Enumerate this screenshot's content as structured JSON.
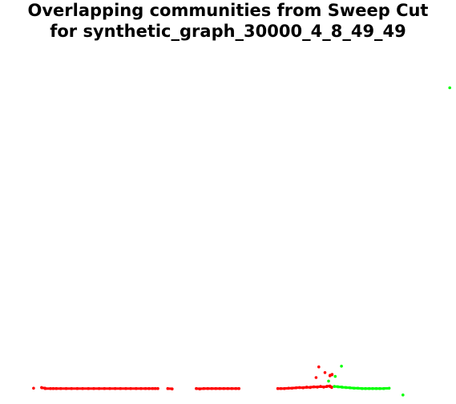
{
  "chart_data": {
    "type": "scatter",
    "title_lines": [
      "Overlapping communities from Sweep Cut",
      "for synthetic_graph_30000_4_8_49_49"
    ],
    "xlabel": "",
    "ylabel": "",
    "axes_visible": false,
    "grid": false,
    "xlim": [
      0,
      100
    ],
    "ylim": [
      0,
      100
    ],
    "colors": {
      "community_a": "#ff0000",
      "community_b": "#00ff00"
    },
    "series": [
      {
        "color_key": "community_a",
        "points": [
          [
            6.1,
            3.1
          ],
          [
            7.9,
            3.3
          ],
          [
            8.7,
            3.0
          ],
          [
            9.9,
            3.0
          ],
          [
            10.5,
            3.0
          ],
          [
            11.2,
            3.0
          ],
          [
            12.2,
            3.0
          ],
          [
            13.4,
            3.0
          ],
          [
            14.6,
            3.0
          ],
          [
            15.9,
            3.0
          ],
          [
            17.1,
            3.0
          ],
          [
            18.4,
            3.0
          ],
          [
            19.6,
            3.0
          ],
          [
            20.8,
            3.0
          ],
          [
            22.0,
            3.0
          ],
          [
            23.2,
            3.0
          ],
          [
            24.4,
            3.0
          ],
          [
            25.6,
            3.0
          ],
          [
            26.8,
            3.0
          ],
          [
            27.9,
            3.0
          ],
          [
            29.1,
            3.0
          ],
          [
            30.2,
            3.0
          ],
          [
            31.2,
            3.0
          ],
          [
            32.0,
            3.0
          ],
          [
            32.8,
            3.0
          ],
          [
            33.4,
            3.0
          ],
          [
            34.0,
            3.0
          ],
          [
            36.2,
            3.0
          ],
          [
            37.2,
            2.9
          ],
          [
            42.6,
            3.0
          ],
          [
            43.4,
            2.9
          ],
          [
            44.3,
            3.0
          ],
          [
            45.2,
            3.0
          ],
          [
            46.1,
            3.0
          ],
          [
            47.0,
            3.0
          ],
          [
            47.9,
            3.0
          ],
          [
            48.8,
            3.0
          ],
          [
            49.7,
            3.0
          ],
          [
            50.6,
            3.0
          ],
          [
            51.5,
            3.0
          ],
          [
            52.2,
            3.0
          ],
          [
            60.9,
            3.0
          ],
          [
            61.6,
            3.0
          ],
          [
            62.4,
            3.0
          ],
          [
            63.3,
            3.1
          ],
          [
            64.1,
            3.1
          ],
          [
            65.0,
            3.2
          ],
          [
            65.8,
            3.3
          ],
          [
            66.6,
            3.2
          ],
          [
            67.4,
            3.4
          ],
          [
            68.2,
            3.3
          ],
          [
            69.0,
            3.5
          ],
          [
            69.8,
            3.4
          ],
          [
            70.5,
            3.6
          ],
          [
            71.2,
            3.4
          ],
          [
            71.9,
            3.6
          ],
          [
            72.6,
            3.7
          ],
          [
            73.0,
            3.3
          ],
          [
            70.1,
            9.1
          ],
          [
            71.5,
            7.5
          ],
          [
            72.6,
            6.6
          ],
          [
            73.1,
            7.0
          ],
          [
            69.5,
            6.1
          ]
        ]
      },
      {
        "color_key": "community_b",
        "points": [
          [
            99.5,
            87.7
          ],
          [
            75.2,
            9.3
          ],
          [
            73.8,
            6.4
          ],
          [
            72.3,
            5.1
          ],
          [
            73.6,
            3.6
          ],
          [
            74.4,
            3.5
          ],
          [
            75.3,
            3.4
          ],
          [
            76.2,
            3.3
          ],
          [
            77.1,
            3.2
          ],
          [
            78.0,
            3.1
          ],
          [
            78.9,
            3.1
          ],
          [
            79.8,
            3.0
          ],
          [
            80.6,
            3.0
          ],
          [
            81.4,
            3.0
          ],
          [
            82.2,
            3.0
          ],
          [
            83.0,
            3.0
          ],
          [
            83.8,
            3.0
          ],
          [
            84.7,
            3.0
          ],
          [
            85.9,
            3.1
          ],
          [
            89.0,
            1.2
          ]
        ]
      }
    ]
  }
}
